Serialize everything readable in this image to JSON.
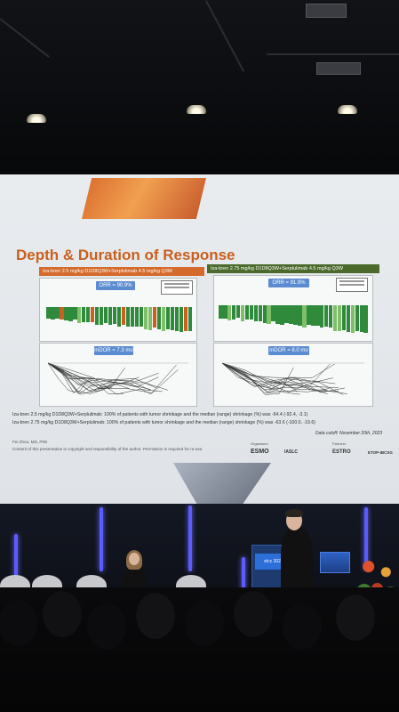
{
  "slide": {
    "title": "Depth & Duration of Response",
    "left_arm": {
      "banner": "Iza-bren 2.5 mg/kg D1D8Q3W+Serplulimab 4.5 mg/kg Q3W",
      "orr_label": "ORR = 90.9%",
      "mdor_label": "mDOR = 7.3 mo",
      "banner_color": "#d46a2b"
    },
    "right_arm": {
      "banner": "Iza-bren 2.75 mg/kg D1D8Q3W+Serplulimab 4.5 mg/kg Q3W",
      "orr_label": "ORR = 91.9%",
      "mdor_label": "mDOR = 8.0 mo",
      "banner_color": "#4b6a2c"
    },
    "footnotes": [
      "Iza-bren 2.5 mg/kg D1D8Q3W+Serplulimab: 100% of patients with tumor shrinkage and the median (range) shrinkage (%) was -64.4 (-92.4, -3.1)",
      "Iza-bren 2.75 mg/kg D1D8Q3W+Serplulimab: 100% of patients with tumor shrinkage and the median (range) shrinkage (%) was -63.6 (-100.0, -19.6)"
    ],
    "data_cutoff": "Data cutoff: November 20th, 2023",
    "author": "Fei Zhou, MD, PhD",
    "copyright": "Content of this presentation is copyright and responsibility of the author. Permission is required for re-use.",
    "organiser_label": "Organisers",
    "partners_label": "Partners",
    "logos": [
      "ESMO",
      "IASLC",
      "ESTRO",
      "ETOP-IBCSG"
    ],
    "accent_color": "#c9601f",
    "badge_color": "#5b8bd0"
  },
  "stage": {
    "podium_label": "elcc 2025"
  }
}
